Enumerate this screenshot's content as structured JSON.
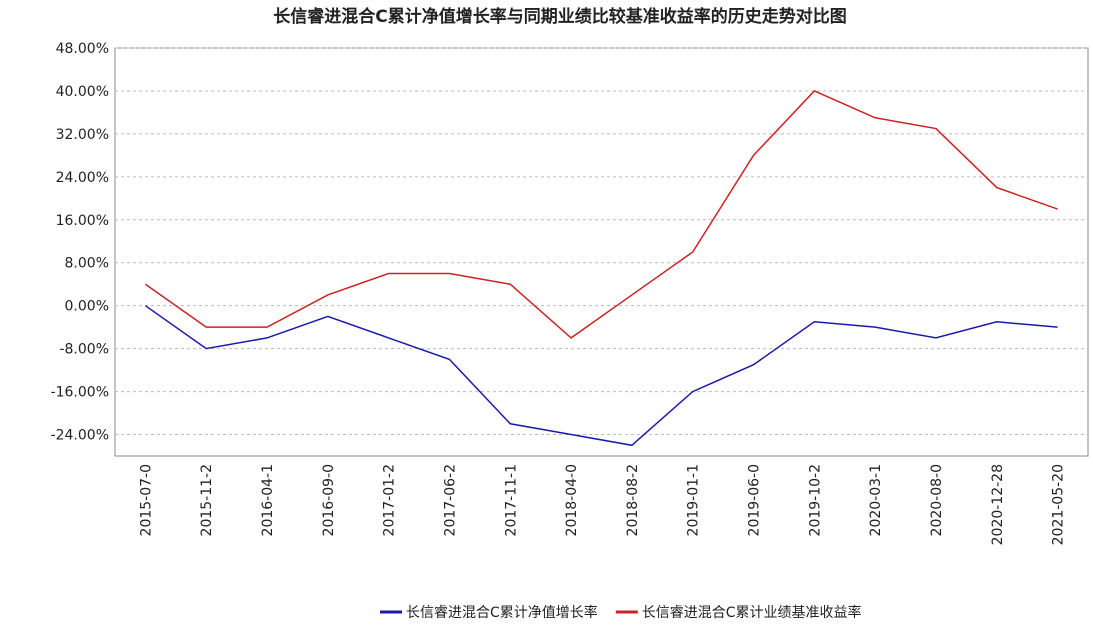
{
  "chart_data": {
    "type": "line",
    "title": "长信睿进混合C累计净值增长率与同期业绩比较基准收益率的历史走势对比图",
    "categories": [
      "2015-07-0",
      "2015-11-2",
      "2016-04-1",
      "2016-09-0",
      "2017-01-2",
      "2017-06-2",
      "2017-11-1",
      "2018-04-0",
      "2018-08-2",
      "2019-01-1",
      "2019-06-0",
      "2019-10-2",
      "2020-03-1",
      "2020-08-0",
      "2020-12-28",
      "2021-05-20"
    ],
    "series": [
      {
        "name": "长信睿进混合C累计净值增长率",
        "color": "#1a1aaa",
        "values": [
          0,
          -8,
          -6,
          -2,
          -6,
          -10,
          -22,
          -24,
          -26,
          -16,
          -11,
          -3,
          -4,
          -6,
          -3,
          -4
        ]
      },
      {
        "name": "长信睿进混合C累计业绩基准收益率",
        "color": "#cc2222",
        "values": [
          4,
          -4,
          -4,
          2,
          6,
          6,
          4,
          -6,
          2,
          10,
          28,
          40,
          35,
          33,
          22,
          18
        ]
      }
    ],
    "ylim": [
      -28,
      48
    ],
    "yticks": [
      {
        "value": -24,
        "label": "-24.00%"
      },
      {
        "value": -16,
        "label": "-16.00%"
      },
      {
        "value": -8,
        "label": "-8.00%"
      },
      {
        "value": 0,
        "label": "0.00%"
      },
      {
        "value": 8,
        "label": "8.00%"
      },
      {
        "value": 16,
        "label": "16.00%"
      },
      {
        "value": 24,
        "label": "24.00%"
      },
      {
        "value": 32,
        "label": "32.00%"
      },
      {
        "value": 40,
        "label": "40.00%"
      },
      {
        "value": 48,
        "label": "48.00%"
      }
    ],
    "grid": true
  }
}
